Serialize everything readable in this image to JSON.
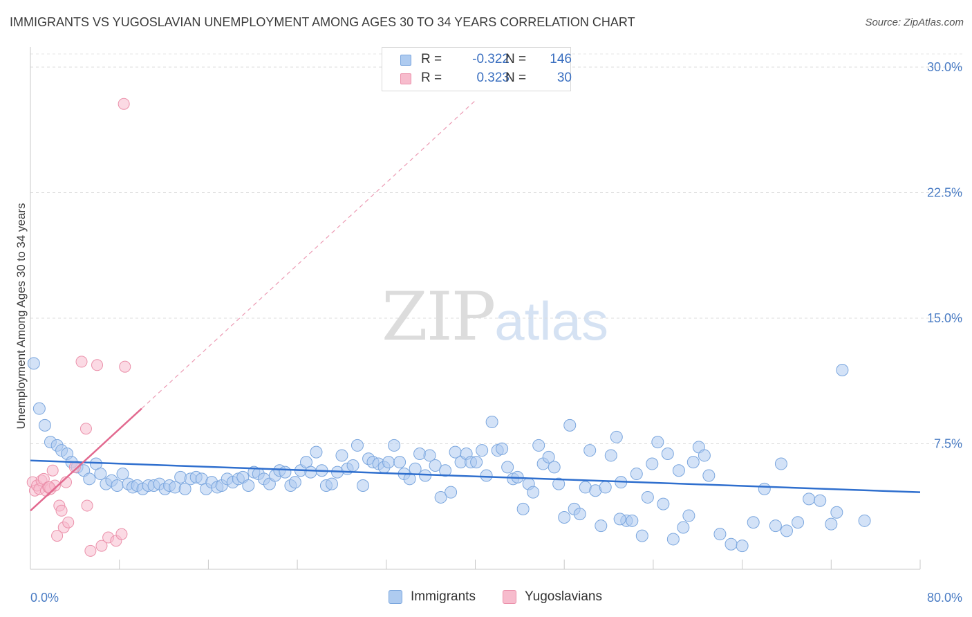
{
  "title": "IMMIGRANTS VS YUGOSLAVIAN UNEMPLOYMENT AMONG AGES 30 TO 34 YEARS CORRELATION CHART",
  "source": "Source: ZipAtlas.com",
  "watermark": {
    "zip": "ZIP",
    "atlas": "atlas"
  },
  "legend": {
    "rows": [
      {
        "r_label": "R =",
        "r_value": "-0.322",
        "n_label": "N =",
        "n_value": "146",
        "color": "#aecbf0"
      },
      {
        "r_label": "R =",
        "r_value": "0.323",
        "n_label": "N =",
        "n_value": "30",
        "color": "#f7bccd"
      }
    ]
  },
  "bottom_legend": [
    {
      "label": "Immigrants",
      "color": "#aecbf0"
    },
    {
      "label": "Yugoslavians",
      "color": "#f7bccd"
    }
  ],
  "chart_data": {
    "type": "scatter",
    "title": "IMMIGRANTS VS YUGOSLAVIAN UNEMPLOYMENT AMONG AGES 30 TO 34 YEARS CORRELATION CHART",
    "xlabel": "",
    "ylabel": "Unemployment Among Ages 30 to 34 years",
    "xlim": [
      0,
      80
    ],
    "ylim": [
      0,
      31
    ],
    "x_tick_labels": [
      "0.0%",
      "80.0%"
    ],
    "y_ticks": [
      7.5,
      15.0,
      22.5,
      30.0
    ],
    "y_tick_labels": [
      "7.5%",
      "15.0%",
      "22.5%",
      "30.0%"
    ],
    "series": [
      {
        "name": "Immigrants",
        "color": "#aecbf0",
        "stroke": "#7aa6de",
        "trend": {
          "x0": 0,
          "y0": 6.5,
          "x1": 80,
          "y1": 4.6,
          "color": "#2f6fce"
        },
        "points": [
          [
            0.3,
            12.3
          ],
          [
            0.8,
            9.6
          ],
          [
            1.3,
            8.6
          ],
          [
            1.8,
            7.6
          ],
          [
            2.4,
            7.4
          ],
          [
            2.8,
            7.1
          ],
          [
            3.3,
            6.9
          ],
          [
            3.7,
            6.4
          ],
          [
            4.2,
            6.1
          ],
          [
            4.8,
            5.9
          ],
          [
            5.3,
            5.4
          ],
          [
            5.9,
            6.3
          ],
          [
            6.3,
            5.7
          ],
          [
            6.8,
            5.1
          ],
          [
            7.3,
            5.3
          ],
          [
            7.8,
            5.0
          ],
          [
            8.3,
            5.7
          ],
          [
            8.8,
            5.1
          ],
          [
            9.2,
            4.9
          ],
          [
            9.6,
            5.0
          ],
          [
            10.1,
            4.8
          ],
          [
            10.6,
            5.0
          ],
          [
            11.1,
            5.0
          ],
          [
            11.6,
            5.1
          ],
          [
            12.1,
            4.8
          ],
          [
            12.5,
            5.0
          ],
          [
            13.0,
            4.9
          ],
          [
            13.5,
            5.5
          ],
          [
            13.9,
            4.8
          ],
          [
            14.4,
            5.4
          ],
          [
            14.9,
            5.5
          ],
          [
            15.4,
            5.4
          ],
          [
            15.8,
            4.8
          ],
          [
            16.3,
            5.2
          ],
          [
            16.8,
            4.9
          ],
          [
            17.2,
            5.0
          ],
          [
            17.7,
            5.4
          ],
          [
            18.2,
            5.2
          ],
          [
            18.7,
            5.4
          ],
          [
            19.1,
            5.5
          ],
          [
            19.6,
            5.0
          ],
          [
            20.1,
            5.8
          ],
          [
            20.5,
            5.7
          ],
          [
            21.0,
            5.4
          ],
          [
            21.5,
            5.1
          ],
          [
            22.0,
            5.6
          ],
          [
            22.4,
            5.9
          ],
          [
            22.9,
            5.8
          ],
          [
            23.4,
            5.0
          ],
          [
            23.8,
            5.2
          ],
          [
            24.3,
            5.9
          ],
          [
            24.8,
            6.4
          ],
          [
            25.2,
            5.8
          ],
          [
            25.7,
            7.0
          ],
          [
            26.2,
            5.9
          ],
          [
            26.6,
            5.0
          ],
          [
            27.1,
            5.1
          ],
          [
            27.6,
            5.8
          ],
          [
            28.0,
            6.8
          ],
          [
            28.5,
            6.0
          ],
          [
            29.0,
            6.2
          ],
          [
            29.4,
            7.4
          ],
          [
            29.9,
            5.0
          ],
          [
            30.4,
            6.6
          ],
          [
            30.8,
            6.4
          ],
          [
            31.3,
            6.3
          ],
          [
            31.8,
            6.1
          ],
          [
            32.2,
            6.4
          ],
          [
            32.7,
            7.4
          ],
          [
            33.2,
            6.4
          ],
          [
            33.6,
            5.7
          ],
          [
            34.1,
            5.4
          ],
          [
            34.6,
            6.0
          ],
          [
            35.0,
            6.9
          ],
          [
            35.5,
            5.6
          ],
          [
            35.9,
            6.8
          ],
          [
            36.4,
            6.2
          ],
          [
            36.9,
            4.3
          ],
          [
            37.3,
            5.9
          ],
          [
            37.8,
            4.6
          ],
          [
            38.2,
            7.0
          ],
          [
            38.7,
            6.4
          ],
          [
            39.2,
            6.9
          ],
          [
            39.6,
            6.4
          ],
          [
            40.1,
            6.4
          ],
          [
            40.6,
            7.1
          ],
          [
            41.0,
            5.6
          ],
          [
            41.5,
            8.8
          ],
          [
            42.0,
            7.1
          ],
          [
            42.4,
            7.2
          ],
          [
            42.9,
            6.1
          ],
          [
            43.4,
            5.4
          ],
          [
            43.8,
            5.5
          ],
          [
            44.3,
            3.6
          ],
          [
            44.8,
            5.1
          ],
          [
            45.2,
            4.6
          ],
          [
            45.7,
            7.4
          ],
          [
            46.1,
            6.3
          ],
          [
            46.6,
            6.7
          ],
          [
            47.1,
            6.1
          ],
          [
            47.5,
            5.1
          ],
          [
            48.0,
            3.1
          ],
          [
            48.5,
            8.6
          ],
          [
            48.9,
            3.6
          ],
          [
            49.4,
            3.3
          ],
          [
            49.9,
            4.9
          ],
          [
            50.3,
            7.1
          ],
          [
            50.8,
            4.7
          ],
          [
            51.3,
            2.6
          ],
          [
            51.7,
            4.9
          ],
          [
            52.2,
            6.8
          ],
          [
            52.7,
            7.9
          ],
          [
            53.1,
            5.2
          ],
          [
            53.6,
            2.9
          ],
          [
            54.1,
            2.9
          ],
          [
            54.5,
            5.7
          ],
          [
            55.0,
            2.0
          ],
          [
            55.5,
            4.3
          ],
          [
            55.9,
            6.3
          ],
          [
            56.4,
            7.6
          ],
          [
            56.9,
            3.9
          ],
          [
            57.3,
            6.9
          ],
          [
            57.8,
            1.8
          ],
          [
            58.3,
            5.9
          ],
          [
            58.7,
            2.5
          ],
          [
            59.2,
            3.2
          ],
          [
            59.6,
            6.4
          ],
          [
            60.1,
            7.3
          ],
          [
            60.6,
            6.8
          ],
          [
            61.0,
            5.6
          ],
          [
            62.0,
            2.1
          ],
          [
            63.0,
            1.5
          ],
          [
            64.0,
            1.4
          ],
          [
            65.0,
            2.8
          ],
          [
            66.0,
            4.8
          ],
          [
            67.0,
            2.6
          ],
          [
            67.5,
            6.3
          ],
          [
            68.0,
            2.3
          ],
          [
            69.0,
            2.8
          ],
          [
            70.0,
            4.2
          ],
          [
            71.0,
            4.1
          ],
          [
            72.0,
            2.7
          ],
          [
            72.5,
            3.4
          ],
          [
            73.0,
            11.9
          ],
          [
            75.0,
            2.9
          ],
          [
            53.0,
            3.0
          ]
        ]
      },
      {
        "name": "Yugoslavians",
        "color": "#f7bccd",
        "stroke": "#eb90aa",
        "trend": {
          "x0": 0,
          "y0": 3.5,
          "x1": 10,
          "y1": 9.6,
          "x_dash_end": 40,
          "y_dash_end": 28.0,
          "color": "#e2698f"
        },
        "points": [
          [
            0.2,
            5.2
          ],
          [
            0.4,
            4.7
          ],
          [
            0.6,
            5.0
          ],
          [
            0.8,
            4.8
          ],
          [
            1.0,
            5.3
          ],
          [
            1.2,
            5.4
          ],
          [
            1.4,
            4.7
          ],
          [
            1.6,
            4.9
          ],
          [
            1.8,
            4.8
          ],
          [
            2.0,
            5.9
          ],
          [
            2.2,
            5.0
          ],
          [
            2.4,
            2.0
          ],
          [
            2.6,
            3.8
          ],
          [
            2.8,
            3.5
          ],
          [
            3.0,
            2.5
          ],
          [
            3.2,
            5.2
          ],
          [
            3.4,
            2.8
          ],
          [
            4.0,
            6.1
          ],
          [
            4.6,
            12.4
          ],
          [
            5.0,
            8.4
          ],
          [
            5.1,
            3.8
          ],
          [
            5.4,
            1.1
          ],
          [
            6.0,
            12.2
          ],
          [
            6.4,
            1.4
          ],
          [
            7.0,
            1.9
          ],
          [
            7.7,
            1.7
          ],
          [
            8.2,
            2.1
          ],
          [
            8.5,
            12.1
          ],
          [
            8.4,
            27.8
          ],
          [
            1.7,
            4.9
          ]
        ]
      }
    ]
  }
}
